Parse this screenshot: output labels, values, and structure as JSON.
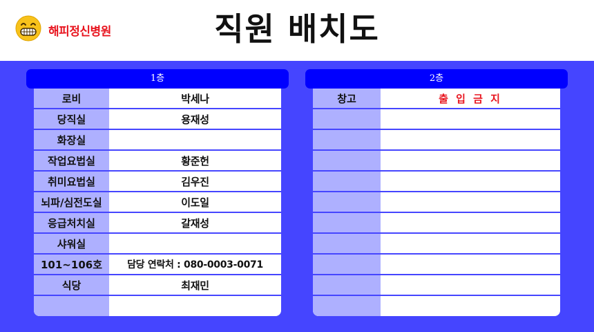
{
  "header": {
    "hospital_name": "해피정신병원",
    "title": "직원 배치도",
    "logo_icon": "grinning-face-icon"
  },
  "colors": {
    "stage_bg": "#4545ff",
    "panel_head_bg": "#0000ff",
    "label_bg": "#aeb0ff",
    "accent_red": "#e8141e"
  },
  "floor1": {
    "title": "1층",
    "rows": [
      {
        "label": "로비",
        "value": "박세나"
      },
      {
        "label": "당직실",
        "value": "용재성"
      },
      {
        "label": "화장실",
        "value": ""
      },
      {
        "label": "작업요법실",
        "value": "황준헌"
      },
      {
        "label": "취미요법실",
        "value": "김우진"
      },
      {
        "label": "뇌파/심전도실",
        "value": "이도일"
      },
      {
        "label": "응급처치실",
        "value": "갈재성"
      },
      {
        "label": "샤워실",
        "value": ""
      },
      {
        "label": "101~106호",
        "value": "담당 연락처 : 080-0003-0071"
      },
      {
        "label": "식당",
        "value": "최재민"
      },
      {
        "label": "",
        "value": ""
      }
    ]
  },
  "floor2": {
    "title": "2층",
    "rows": [
      {
        "label": "창고",
        "value": "출 입 금 지"
      },
      {
        "label": "",
        "value": ""
      },
      {
        "label": "",
        "value": ""
      },
      {
        "label": "",
        "value": ""
      },
      {
        "label": "",
        "value": ""
      },
      {
        "label": "",
        "value": ""
      },
      {
        "label": "",
        "value": ""
      },
      {
        "label": "",
        "value": ""
      },
      {
        "label": "",
        "value": ""
      },
      {
        "label": "",
        "value": ""
      },
      {
        "label": "",
        "value": ""
      }
    ]
  }
}
